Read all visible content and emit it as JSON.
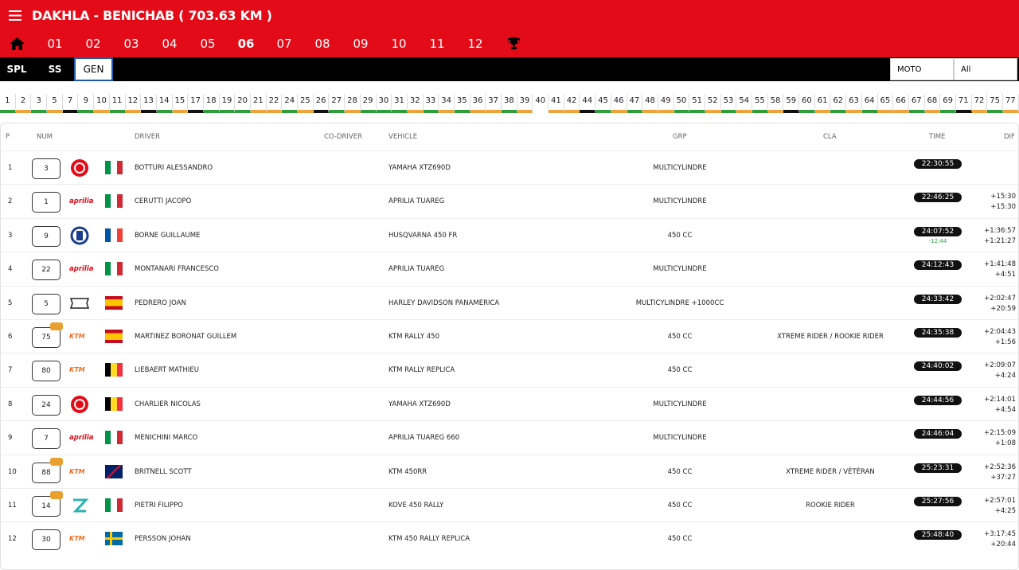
{
  "header": {
    "title": "DAKHLA - BENICHAB ( 703.63 KM )"
  },
  "stages": [
    "01",
    "02",
    "03",
    "04",
    "05",
    "06",
    "07",
    "08",
    "09",
    "10",
    "11",
    "12"
  ],
  "tabs": [
    "SPL",
    "SS",
    "GEN"
  ],
  "filters": [
    "MOTO",
    "All"
  ],
  "strip": [
    "1",
    "2",
    "3",
    "5",
    "7",
    "9",
    "10",
    "11",
    "12",
    "13",
    "14",
    "15",
    "17",
    "18",
    "19",
    "20",
    "21",
    "22",
    "24",
    "25",
    "26",
    "27",
    "28",
    "29",
    "30",
    "31",
    "32",
    "33",
    "34",
    "35",
    "36",
    "37",
    "38",
    "39",
    "40",
    "41",
    "42",
    "44",
    "45",
    "46",
    "47",
    "48",
    "49",
    "50",
    "51",
    "52",
    "53",
    "54",
    "55",
    "58",
    "59",
    "60",
    "61",
    "62",
    "63",
    "64",
    "65",
    "66",
    "67",
    "68",
    "69",
    "71",
    "72",
    "75",
    "77"
  ],
  "table": {
    "headers": [
      "P",
      "NUM",
      "DRIVER",
      "CO-DRIVER",
      "VEHICLE",
      "GRP",
      "CLA",
      "TIME",
      "DIF"
    ],
    "rows": [
      {
        "p": 1,
        "num": 3,
        "driver": "BOTTURI ALESSANDRO",
        "vehicle": "YAMAHA XTZ690D",
        "grp": "MULTICYLINDRE",
        "time": "22:30:55"
      },
      {
        "p": 2,
        "num": 1,
        "brand": "aprilia",
        "driver": "CERUTTI JACOPO",
        "vehicle": "APRILIA TUAREG",
        "grp": "MULTICYLINDRE",
        "time": "22:46:25",
        "dif": [
          "+15:30",
          "+15:30"
        ]
      },
      {
        "p": 3,
        "num": 9,
        "driver": "BORNE GUILLAUME",
        "vehicle": "HUSQVARNA 450 FR",
        "grp": "450 CC",
        "time": "24:07:52",
        "penalty": "-12:44",
        "dif": [
          "+1:36:57",
          "+1:21:27"
        ]
      },
      {
        "p": 4,
        "num": 22,
        "brand": "aprilia",
        "driver": "MONTANARI FRANCESCO",
        "vehicle": "APRILIA TUAREG",
        "grp": "MULTICYLINDRE",
        "time": "24:12:43",
        "dif": [
          "+1:41:48",
          "+4:51"
        ]
      },
      {
        "p": 5,
        "num": 5,
        "driver": "PEDRERO JOAN",
        "vehicle": "HARLEY DAVIDSON PANAMERICA",
        "grp": "MULTICYLINDRE +1000CC",
        "time": "24:33:42",
        "dif": [
          "+2:02:47",
          "+20:59"
        ]
      },
      {
        "p": 6,
        "num": 75,
        "brand": "KTM",
        "driver": "MARTINEZ BORONAT GUILLEM",
        "vehicle": "KTM RALLY 450",
        "grp": "450 CC",
        "cla": "XTREME RIDER / ROOKIE RIDER",
        "time": "24:35:38",
        "dif": [
          "+2:04:43",
          "+1:56"
        ]
      },
      {
        "p": 7,
        "num": 80,
        "brand": "KTM",
        "driver": "LIEBAERT MATHIEU",
        "vehicle": "KTM RALLY REPLICA",
        "grp": "450 CC",
        "time": "24:40:02",
        "dif": [
          "+2:09:07",
          "+4:24"
        ]
      },
      {
        "p": 8,
        "num": 24,
        "driver": "CHARLIER NICOLAS",
        "vehicle": "YAMAHA XTZ690D",
        "grp": "MULTICYLINDRE",
        "time": "24:44:56",
        "dif": [
          "+2:14:01",
          "+4:54"
        ]
      },
      {
        "p": 9,
        "num": 7,
        "brand": "aprilia",
        "driver": "MENICHINI MARCO",
        "vehicle": "APRILIA TUAREG 660",
        "grp": "MULTICYLINDRE",
        "time": "24:46:04",
        "dif": [
          "+2:15:09",
          "+1:08"
        ]
      },
      {
        "p": 10,
        "num": 88,
        "brand": "KTM",
        "driver": "BRITNELL SCOTT",
        "vehicle": "KTM 450RR",
        "grp": "450 CC",
        "cla": "XTREME RIDER / VÉTÉRAN",
        "time": "25:23:31",
        "dif": [
          "+2:52:36",
          "+37:27"
        ]
      },
      {
        "p": 11,
        "num": 14,
        "driver": "PIETRI FILIPPO",
        "vehicle": "KOVE 450 RALLY",
        "grp": "450 CC",
        "cla": "ROOKIE RIDER",
        "time": "25:27:56",
        "dif": [
          "+2:57:01",
          "+4:25"
        ]
      },
      {
        "p": 12,
        "num": 30,
        "brand": "KTM",
        "driver": "PERSSON JOHAN",
        "vehicle": "KTM 450 RALLY REPLICA",
        "grp": "450 CC",
        "time": "25:48:40",
        "dif": [
          "+3:17:45",
          "+20:44"
        ]
      }
    ]
  }
}
